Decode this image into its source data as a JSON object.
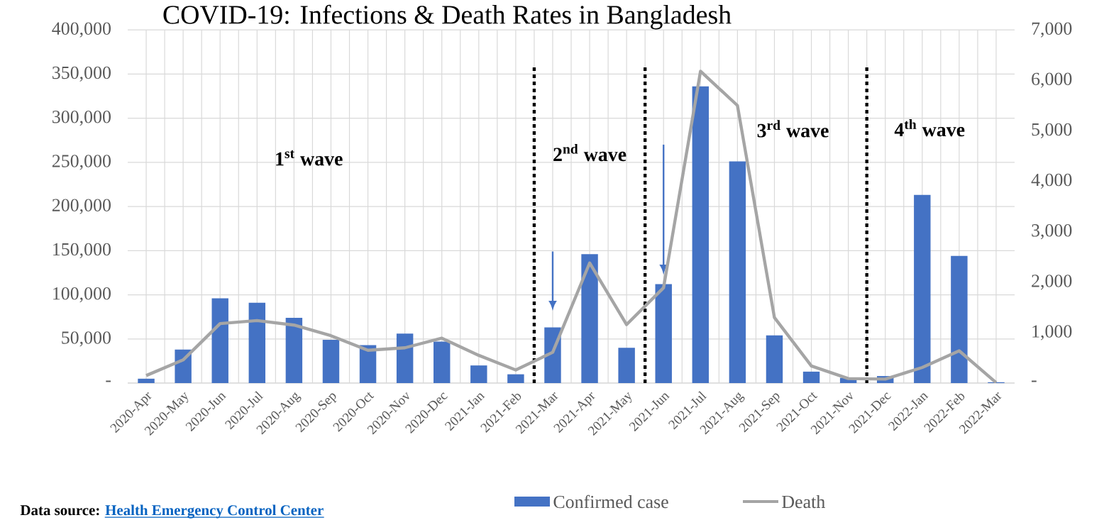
{
  "chart_data": {
    "type": "bar",
    "title": "COVID-19: Infections & Death Rates in Bangladesh",
    "categories": [
      "2020-Apr",
      "2020-May",
      "2020-Jun",
      "2020-Jul",
      "2020-Aug",
      "2020-Sep",
      "2020-Oct",
      "2020-Nov",
      "2020-Dec",
      "2021-Jan",
      "2021-Feb",
      "2021-Mar",
      "2021-Apr",
      "2021-May",
      "2021-Jun",
      "2021-Jul",
      "2021-Aug",
      "2021-Sep",
      "2021-Oct",
      "2021-Nov",
      "2021-Dec",
      "2022-Jan",
      "2022-Feb",
      "2022-Mar"
    ],
    "series": [
      {
        "name": "Confirmed case",
        "color": "#4472c4",
        "values": [
          5000,
          38000,
          96000,
          91000,
          74000,
          49000,
          43000,
          56000,
          47000,
          20000,
          10000,
          63000,
          146000,
          40000,
          112000,
          336000,
          251000,
          54000,
          13000,
          6000,
          8000,
          213000,
          144000,
          1000
        ]
      },
      {
        "name": "Death",
        "type": "line",
        "axis": "y2",
        "color": "#a5a5a5",
        "values": [
          150,
          460,
          1180,
          1240,
          1150,
          940,
          650,
          700,
          890,
          550,
          260,
          610,
          2380,
          1160,
          1890,
          6180,
          5500,
          1300,
          340,
          90,
          80,
          310,
          640,
          10
        ]
      }
    ],
    "ylim": [
      0,
      400000
    ],
    "yticks": [
      {
        "value": 0,
        "label": "-"
      },
      {
        "value": 50000,
        "label": "50,000"
      },
      {
        "value": 100000,
        "label": "100,000"
      },
      {
        "value": 150000,
        "label": "150,000"
      },
      {
        "value": 200000,
        "label": "200,000"
      },
      {
        "value": 250000,
        "label": "250,000"
      },
      {
        "value": 300000,
        "label": "300,000"
      },
      {
        "value": 350000,
        "label": "350,000"
      },
      {
        "value": 400000,
        "label": "400,000"
      }
    ],
    "y2lim": [
      0,
      7000
    ],
    "y2ticks": [
      {
        "value": 0,
        "label": "-"
      },
      {
        "value": 1000,
        "label": "1,000"
      },
      {
        "value": 2000,
        "label": "2,000"
      },
      {
        "value": 3000,
        "label": "3,000"
      },
      {
        "value": 4000,
        "label": "4,000"
      },
      {
        "value": 5000,
        "label": "5,000"
      },
      {
        "value": 6000,
        "label": "6,000"
      },
      {
        "value": 7000,
        "label": "7,000"
      }
    ],
    "annotations": [
      "1$^{st}$ wave",
      "2$^{nd}$ wave",
      "3$^{rd}$ wave",
      "4$^{th}$ wave",
      "Data source:",
      "Health Emergency Control Center"
    ],
    "grid": true,
    "legend": "bottom",
    "marker": "none"
  }
}
